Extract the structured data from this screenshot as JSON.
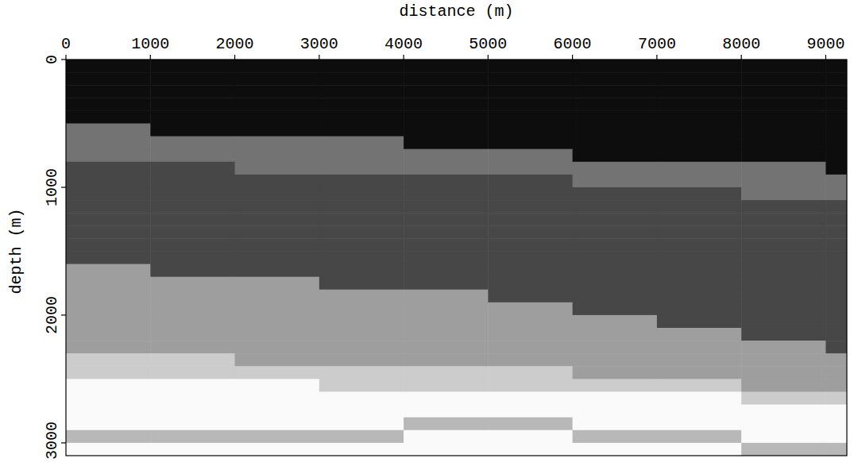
{
  "chart_data": {
    "type": "heatmap",
    "x_label": "distance (m)",
    "y_label": "depth (m)",
    "xlim": [
      0,
      9250
    ],
    "ylim": [
      0,
      3100
    ],
    "xticks": [
      0,
      1000,
      2000,
      3000,
      4000,
      5000,
      6000,
      7000,
      8000,
      9000
    ],
    "yticks": [
      0,
      1000,
      2000,
      3000
    ],
    "zlim": [
      0,
      100
    ],
    "x": [
      0,
      1000,
      2000,
      3000,
      4000,
      5000,
      6000,
      7000,
      8000,
      9000,
      9250
    ],
    "y": [
      0,
      100,
      200,
      300,
      400,
      500,
      600,
      700,
      800,
      900,
      1000,
      1100,
      1200,
      1300,
      1400,
      1500,
      1600,
      1700,
      1800,
      1900,
      2000,
      2100,
      2200,
      2300,
      2400,
      2500,
      2600,
      2700,
      2800,
      2900,
      3000,
      3100
    ],
    "cells": [
      [
        5,
        5,
        5,
        5,
        5,
        5,
        5,
        5,
        5,
        5
      ],
      [
        5,
        5,
        5,
        5,
        5,
        5,
        5,
        5,
        5,
        5
      ],
      [
        5,
        5,
        5,
        5,
        5,
        5,
        5,
        5,
        5,
        5
      ],
      [
        5,
        5,
        5,
        5,
        5,
        5,
        5,
        5,
        5,
        5
      ],
      [
        5,
        5,
        5,
        5,
        5,
        5,
        5,
        5,
        5,
        5
      ],
      [
        45,
        5,
        5,
        5,
        5,
        5,
        5,
        5,
        5,
        5
      ],
      [
        45,
        45,
        45,
        45,
        5,
        5,
        5,
        5,
        5,
        5
      ],
      [
        45,
        45,
        45,
        45,
        45,
        45,
        5,
        5,
        5,
        5
      ],
      [
        28,
        28,
        45,
        45,
        45,
        45,
        45,
        45,
        45,
        5
      ],
      [
        28,
        28,
        28,
        28,
        28,
        28,
        45,
        45,
        45,
        45
      ],
      [
        28,
        28,
        28,
        28,
        28,
        28,
        28,
        28,
        45,
        45
      ],
      [
        28,
        28,
        28,
        28,
        28,
        28,
        28,
        28,
        28,
        28
      ],
      [
        28,
        28,
        28,
        28,
        28,
        28,
        28,
        28,
        28,
        28
      ],
      [
        28,
        28,
        28,
        28,
        28,
        28,
        28,
        28,
        28,
        28
      ],
      [
        28,
        28,
        28,
        28,
        28,
        28,
        28,
        28,
        28,
        28
      ],
      [
        28,
        28,
        28,
        28,
        28,
        28,
        28,
        28,
        28,
        28
      ],
      [
        62,
        28,
        28,
        28,
        28,
        28,
        28,
        28,
        28,
        28
      ],
      [
        62,
        62,
        62,
        28,
        28,
        28,
        28,
        28,
        28,
        28
      ],
      [
        62,
        62,
        62,
        62,
        62,
        28,
        28,
        28,
        28,
        28
      ],
      [
        62,
        62,
        62,
        62,
        62,
        62,
        28,
        28,
        28,
        28
      ],
      [
        62,
        62,
        62,
        62,
        62,
        62,
        62,
        28,
        28,
        28
      ],
      [
        62,
        62,
        62,
        62,
        62,
        62,
        62,
        62,
        28,
        28
      ],
      [
        62,
        62,
        62,
        62,
        62,
        62,
        62,
        62,
        62,
        28
      ],
      [
        80,
        80,
        62,
        62,
        62,
        62,
        62,
        62,
        62,
        62
      ],
      [
        80,
        80,
        80,
        80,
        80,
        80,
        62,
        62,
        62,
        62
      ],
      [
        98,
        98,
        98,
        80,
        80,
        80,
        80,
        80,
        62,
        62
      ],
      [
        98,
        98,
        98,
        98,
        98,
        98,
        98,
        98,
        80,
        80
      ],
      [
        98,
        98,
        98,
        98,
        98,
        98,
        98,
        98,
        98,
        98
      ],
      [
        98,
        98,
        98,
        98,
        72,
        72,
        98,
        98,
        98,
        98
      ],
      [
        72,
        72,
        72,
        72,
        98,
        98,
        72,
        72,
        98,
        98
      ],
      [
        98,
        98,
        98,
        98,
        98,
        98,
        98,
        98,
        72,
        72
      ]
    ]
  }
}
